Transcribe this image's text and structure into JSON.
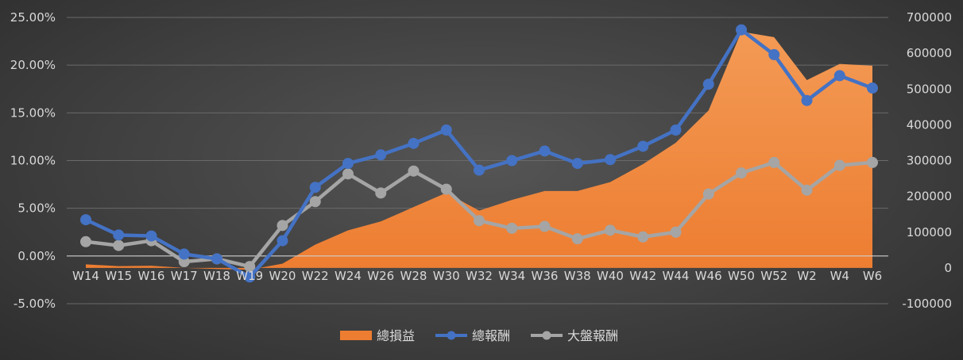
{
  "chart_data": {
    "type": "line",
    "x": [
      "W14",
      "W15",
      "W16",
      "W17",
      "W18",
      "W19",
      "W20",
      "W22",
      "W24",
      "W26",
      "W28",
      "W30",
      "W32",
      "W34",
      "W36",
      "W38",
      "W40",
      "W42",
      "W44",
      "W46",
      "W50",
      "W52",
      "W2",
      "W4",
      "W6"
    ],
    "y_left": {
      "min": -0.05,
      "max": 0.25,
      "step": 0.05,
      "ticks": [
        "25.00%",
        "20.00%",
        "15.00%",
        "10.00%",
        "5.00%",
        "0.00%",
        "-5.00%"
      ]
    },
    "y_right": {
      "min": -100000,
      "max": 700000,
      "step": 100000,
      "ticks": [
        "700000",
        "600000",
        "500000",
        "400000",
        "300000",
        "200000",
        "100000",
        "0",
        "-100000"
      ]
    },
    "grid": true,
    "legend_position": "bottom",
    "series": [
      {
        "name": "總損益",
        "kind": "area",
        "axis": "right",
        "color": "#ed7d31",
        "values": [
          10000,
          5000,
          6000,
          0,
          -3000,
          -5000,
          12000,
          65000,
          105000,
          130000,
          170000,
          210000,
          160000,
          190000,
          215000,
          215000,
          240000,
          290000,
          350000,
          440000,
          660000,
          645000,
          525000,
          570000,
          565000
        ]
      },
      {
        "name": "總報酬",
        "kind": "line",
        "axis": "left",
        "color": "#4472c4",
        "values": [
          0.038,
          0.022,
          0.021,
          0.002,
          -0.003,
          -0.022,
          0.016,
          0.072,
          0.097,
          0.106,
          0.118,
          0.132,
          0.09,
          0.1,
          0.11,
          0.097,
          0.101,
          0.115,
          0.132,
          0.18,
          0.237,
          0.211,
          0.163,
          0.189,
          0.176
        ]
      },
      {
        "name": "大盤報酬",
        "kind": "line",
        "axis": "left",
        "color": "#a5a5a5",
        "values": [
          0.015,
          0.011,
          0.016,
          -0.006,
          -0.003,
          -0.011,
          0.032,
          0.057,
          0.086,
          0.066,
          0.089,
          0.07,
          0.037,
          0.029,
          0.031,
          0.018,
          0.027,
          0.02,
          0.025,
          0.065,
          0.087,
          0.098,
          0.069,
          0.095,
          0.098
        ]
      }
    ]
  }
}
